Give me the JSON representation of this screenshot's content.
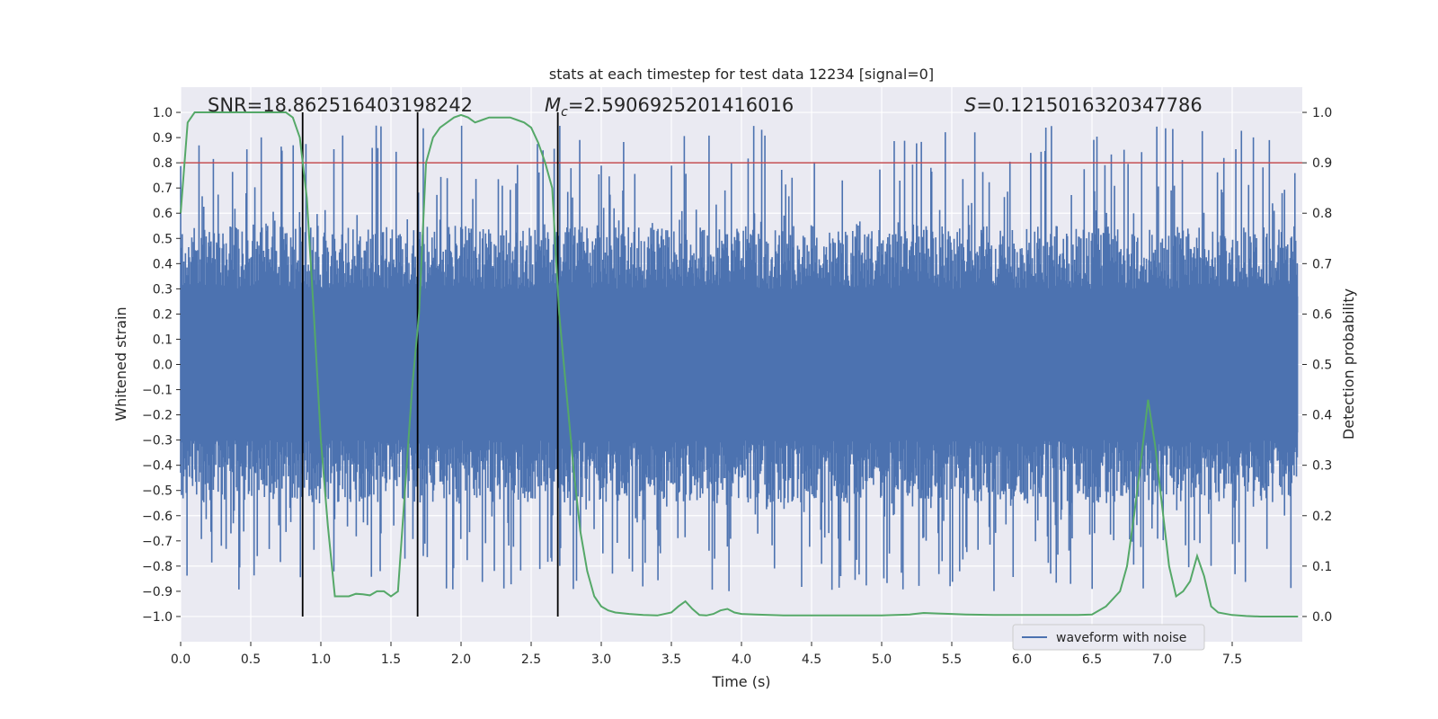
{
  "chart_data": {
    "type": "line",
    "title": "stats at each timestep for test data 12234 [signal=0]",
    "xlabel": "Time (s)",
    "ylabel_left": "Whitened strain",
    "ylabel_right": "Detection probability",
    "xlim": [
      0.0,
      8.0
    ],
    "ylim_left": [
      -1.1,
      1.1
    ],
    "ylim_right": [
      -0.05,
      1.05
    ],
    "grid": true,
    "background": "#eaeaf2",
    "x_ticks": [
      "0.0",
      "0.5",
      "1.0",
      "1.5",
      "2.0",
      "2.5",
      "3.0",
      "3.5",
      "4.0",
      "4.5",
      "5.0",
      "5.5",
      "6.0",
      "6.5",
      "7.0",
      "7.5"
    ],
    "x_tick_values": [
      0.0,
      0.5,
      1.0,
      1.5,
      2.0,
      2.5,
      3.0,
      3.5,
      4.0,
      4.5,
      5.0,
      5.5,
      6.0,
      6.5,
      7.0,
      7.5
    ],
    "y_ticks_left": [
      "1.0",
      "0.9",
      "0.8",
      "0.7",
      "0.6",
      "0.5",
      "0.4",
      "0.3",
      "0.2",
      "0.1",
      "0.0",
      "−0.1",
      "−0.2",
      "−0.3",
      "−0.4",
      "−0.5",
      "−0.6",
      "−0.7",
      "−0.8",
      "−0.9",
      "−1.0"
    ],
    "y_tick_values_left": [
      1.0,
      0.9,
      0.8,
      0.7,
      0.6,
      0.5,
      0.4,
      0.3,
      0.2,
      0.1,
      0.0,
      -0.1,
      -0.2,
      -0.3,
      -0.4,
      -0.5,
      -0.6,
      -0.7,
      -0.8,
      -0.9,
      -1.0
    ],
    "y_ticks_right": [
      "1.0",
      "0.9",
      "0.8",
      "0.7",
      "0.6",
      "0.5",
      "0.4",
      "0.3",
      "0.2",
      "0.1",
      "0.0"
    ],
    "y_tick_values_right": [
      1.0,
      0.9,
      0.8,
      0.7,
      0.6,
      0.5,
      0.4,
      0.3,
      0.2,
      0.1,
      0.0
    ],
    "annotations": {
      "snr": "SNR=18.862516403198242",
      "mc_symbol": "M",
      "mc_sub": "c",
      "mc_value": "=2.5906925201416016",
      "s_symbol": "S",
      "s_value": "=0.1215016320347786"
    },
    "threshold": {
      "value": 0.9,
      "axis": "right",
      "color": "#c44e52"
    },
    "vertical_lines": [
      0.87,
      1.69,
      2.69
    ],
    "legend": {
      "label": "waveform with noise",
      "placement": "lower-right"
    },
    "series": [
      {
        "name": "waveform with noise",
        "axis": "left",
        "color": "#4c72b0",
        "generated": true,
        "samples": 1400,
        "amplitude_envelope": 0.55
      },
      {
        "axis": "right",
        "color": "#55a868",
        "x": [
          0.0,
          0.05,
          0.1,
          0.2,
          0.3,
          0.4,
          0.5,
          0.6,
          0.7,
          0.75,
          0.8,
          0.85,
          0.9,
          0.95,
          1.0,
          1.05,
          1.1,
          1.15,
          1.2,
          1.25,
          1.3,
          1.35,
          1.4,
          1.45,
          1.5,
          1.55,
          1.6,
          1.65,
          1.7,
          1.75,
          1.8,
          1.85,
          1.9,
          1.95,
          2.0,
          2.05,
          2.1,
          2.15,
          2.2,
          2.25,
          2.3,
          2.35,
          2.4,
          2.45,
          2.5,
          2.55,
          2.6,
          2.65,
          2.7,
          2.75,
          2.8,
          2.85,
          2.9,
          2.95,
          3.0,
          3.05,
          3.1,
          3.2,
          3.3,
          3.4,
          3.5,
          3.55,
          3.6,
          3.65,
          3.7,
          3.75,
          3.8,
          3.85,
          3.9,
          3.95,
          4.0,
          4.1,
          4.2,
          4.3,
          4.5,
          4.7,
          5.0,
          5.2,
          5.3,
          5.4,
          5.5,
          5.6,
          5.8,
          6.0,
          6.2,
          6.4,
          6.5,
          6.6,
          6.7,
          6.75,
          6.8,
          6.85,
          6.9,
          6.95,
          7.0,
          7.05,
          7.1,
          7.15,
          7.2,
          7.25,
          7.3,
          7.35,
          7.4,
          7.5,
          7.6,
          7.7,
          7.8,
          7.9,
          7.97
        ],
        "values": [
          0.8,
          0.98,
          1.0,
          1.0,
          1.0,
          1.0,
          1.0,
          1.0,
          1.0,
          1.0,
          0.99,
          0.95,
          0.83,
          0.6,
          0.35,
          0.18,
          0.04,
          0.04,
          0.04,
          0.045,
          0.044,
          0.042,
          0.05,
          0.05,
          0.04,
          0.05,
          0.25,
          0.45,
          0.6,
          0.9,
          0.95,
          0.97,
          0.98,
          0.99,
          0.995,
          0.99,
          0.98,
          0.985,
          0.99,
          0.99,
          0.99,
          0.99,
          0.985,
          0.98,
          0.97,
          0.94,
          0.9,
          0.85,
          0.6,
          0.45,
          0.3,
          0.17,
          0.09,
          0.04,
          0.02,
          0.012,
          0.008,
          0.005,
          0.003,
          0.002,
          0.008,
          0.02,
          0.03,
          0.015,
          0.003,
          0.002,
          0.005,
          0.012,
          0.015,
          0.008,
          0.005,
          0.004,
          0.003,
          0.002,
          0.002,
          0.002,
          0.002,
          0.004,
          0.007,
          0.006,
          0.005,
          0.004,
          0.003,
          0.003,
          0.003,
          0.003,
          0.004,
          0.02,
          0.05,
          0.1,
          0.2,
          0.31,
          0.43,
          0.34,
          0.22,
          0.1,
          0.04,
          0.05,
          0.07,
          0.12,
          0.08,
          0.02,
          0.008,
          0.003,
          0.001,
          0.0,
          0.0,
          0.0,
          0.0
        ]
      }
    ]
  }
}
